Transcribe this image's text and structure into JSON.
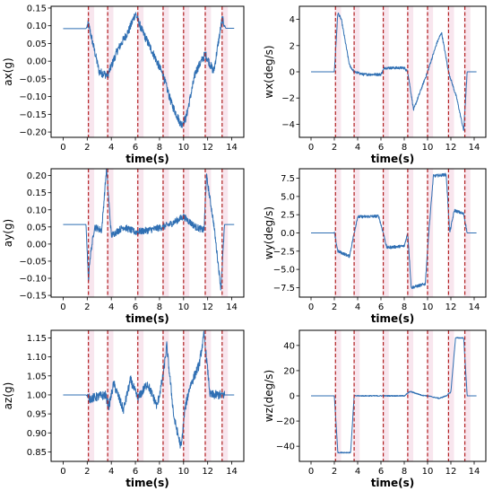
{
  "chart_data": [
    {
      "type": "line",
      "ylabel": "ax(g)",
      "xlabel": "time(s)",
      "xlim": [
        -1,
        15
      ],
      "ylim": [
        -0.215,
        0.155
      ],
      "xticks": [
        0,
        2,
        4,
        6,
        8,
        10,
        12,
        14
      ],
      "yticks": [
        -0.2,
        -0.15,
        -0.1,
        -0.05,
        0.0,
        0.05,
        0.1,
        0.15
      ],
      "ytick_labels": [
        "−0.20",
        "−0.15",
        "−0.10",
        "−0.05",
        "0.00",
        "0.05",
        "0.10",
        "0.15"
      ],
      "events": [
        2.1,
        3.7,
        6.2,
        8.3,
        10.0,
        11.8,
        13.2
      ],
      "noise": 0.012,
      "series": [
        {
          "x": [
            0,
            1.9,
            2.1,
            3.0,
            3.7,
            4.5,
            5.5,
            6.0,
            6.5,
            7.5,
            8.3,
            9.0,
            9.8,
            10.2,
            11.0,
            11.8,
            12.5,
            13.2,
            13.5,
            14.2
          ],
          "y": [
            0.092,
            0.092,
            0.105,
            -0.03,
            -0.04,
            0.03,
            0.09,
            0.135,
            0.09,
            0.02,
            -0.04,
            -0.12,
            -0.18,
            -0.16,
            -0.03,
            0.02,
            -0.03,
            0.12,
            0.093,
            0.093
          ]
        }
      ]
    },
    {
      "type": "line",
      "ylabel": "wx(deg/s)",
      "xlabel": "time(s)",
      "xlim": [
        -1,
        15
      ],
      "ylim": [
        -5.0,
        5.0
      ],
      "xticks": [
        0,
        2,
        4,
        6,
        8,
        10,
        12,
        14
      ],
      "yticks": [
        -4,
        -2,
        0,
        2,
        4
      ],
      "ytick_labels": [
        "−4",
        "−2",
        "0",
        "2",
        "4"
      ],
      "events": [
        2.1,
        3.7,
        6.2,
        8.3,
        10.0,
        11.8,
        13.2
      ],
      "noise": 0.1,
      "series": [
        {
          "x": [
            0,
            2.0,
            2.3,
            2.6,
            3.3,
            3.7,
            4.5,
            6.0,
            6.3,
            8.0,
            8.3,
            8.8,
            9.5,
            10.0,
            10.8,
            11.2,
            11.8,
            12.5,
            13.1,
            13.4,
            14.2
          ],
          "y": [
            0,
            0,
            4.5,
            4.0,
            0.5,
            0,
            -0.2,
            -0.2,
            0.3,
            0.3,
            0,
            -2.9,
            -1.2,
            0,
            2.2,
            3.0,
            0,
            -2.0,
            -4.5,
            0,
            0
          ]
        }
      ]
    },
    {
      "type": "line",
      "ylabel": "ay(g)",
      "xlabel": "time(s)",
      "xlim": [
        -1,
        15
      ],
      "ylim": [
        -0.155,
        0.22
      ],
      "xticks": [
        0,
        2,
        4,
        6,
        8,
        10,
        12,
        14
      ],
      "yticks": [
        -0.15,
        -0.1,
        -0.05,
        0.0,
        0.05,
        0.1,
        0.15,
        0.2
      ],
      "ytick_labels": [
        "−0.15",
        "−0.10",
        "−0.05",
        "0.00",
        "0.05",
        "0.10",
        "0.15",
        "0.20"
      ],
      "events": [
        2.1,
        3.7,
        6.2,
        8.3,
        10.0,
        11.8,
        13.2
      ],
      "noise": 0.01,
      "series": [
        {
          "x": [
            0,
            1.9,
            2.1,
            2.2,
            2.6,
            3.2,
            3.6,
            4.0,
            5.0,
            6.0,
            7.0,
            8.3,
            9.0,
            10.0,
            11.0,
            11.7,
            11.9,
            12.5,
            13.1,
            13.4,
            14.2
          ],
          "y": [
            0.057,
            0.057,
            -0.11,
            -0.05,
            0.05,
            0.04,
            0.22,
            0.025,
            0.05,
            0.035,
            0.04,
            0.05,
            0.06,
            0.08,
            0.05,
            0.04,
            0.2,
            0.06,
            -0.13,
            0.057,
            0.057
          ]
        }
      ]
    },
    {
      "type": "line",
      "ylabel": "wy(deg/s)",
      "xlabel": "time(s)",
      "xlim": [
        -1,
        15
      ],
      "ylim": [
        -8.8,
        8.8
      ],
      "xticks": [
        0,
        2,
        4,
        6,
        8,
        10,
        12,
        14
      ],
      "yticks": [
        -7.5,
        -5.0,
        -2.5,
        0.0,
        2.5,
        5.0,
        7.5
      ],
      "ytick_labels": [
        "−7.5",
        "−5.0",
        "−2.5",
        "0.0",
        "2.5",
        "5.0",
        "7.5"
      ],
      "events": [
        2.1,
        3.7,
        6.2,
        8.3,
        10.0,
        11.8,
        13.2
      ],
      "noise": 0.2,
      "series": [
        {
          "x": [
            0,
            2.0,
            2.3,
            3.3,
            3.7,
            4.0,
            5.8,
            6.2,
            6.5,
            8.0,
            8.3,
            8.6,
            9.8,
            10.1,
            10.5,
            11.6,
            11.9,
            12.3,
            13.1,
            13.4,
            14.2
          ],
          "y": [
            0,
            0,
            -2.5,
            -3.2,
            0,
            2.2,
            2.3,
            0,
            -2.0,
            -1.8,
            0,
            -7.5,
            -7.0,
            0,
            7.8,
            8.0,
            0,
            3.1,
            2.6,
            0,
            0
          ]
        }
      ]
    },
    {
      "type": "line",
      "ylabel": "az(g)",
      "xlabel": "time(s)",
      "xlim": [
        -1,
        15
      ],
      "ylim": [
        0.825,
        1.17
      ],
      "xticks": [
        0,
        2,
        4,
        6,
        8,
        10,
        12,
        14
      ],
      "yticks": [
        0.85,
        0.9,
        0.95,
        1.0,
        1.05,
        1.1,
        1.15
      ],
      "ytick_labels": [
        "0.85",
        "0.90",
        "0.95",
        "1.00",
        "1.05",
        "1.10",
        "1.15"
      ],
      "events": [
        2.1,
        3.7,
        6.2,
        8.3,
        10.0,
        11.8,
        13.2
      ],
      "noise": 0.012,
      "series": [
        {
          "x": [
            0,
            1.9,
            2.2,
            3.5,
            3.8,
            4.2,
            5.0,
            5.6,
            6.2,
            7.0,
            7.8,
            8.3,
            8.6,
            9.2,
            9.8,
            10.1,
            10.5,
            11.3,
            11.7,
            12.2,
            13.2,
            14.2
          ],
          "y": [
            1.0,
            1.0,
            0.99,
            1.0,
            0.97,
            1.03,
            0.96,
            1.04,
            0.99,
            1.03,
            0.97,
            1.05,
            1.13,
            0.94,
            0.86,
            0.96,
            1.02,
            1.08,
            1.16,
            1.0,
            1.0,
            1.0
          ]
        }
      ]
    },
    {
      "type": "line",
      "ylabel": "wz(deg/s)",
      "xlabel": "time(s)",
      "xlim": [
        -1,
        15
      ],
      "ylim": [
        -52,
        52
      ],
      "xticks": [
        0,
        2,
        4,
        6,
        8,
        10,
        12,
        14
      ],
      "yticks": [
        -40,
        -20,
        0,
        20,
        40
      ],
      "ytick_labels": [
        "−40",
        "−20",
        "0",
        "20",
        "40"
      ],
      "events": [
        2.1,
        3.7,
        6.2,
        8.3,
        10.0,
        11.8,
        13.2
      ],
      "noise": 0.4,
      "series": [
        {
          "x": [
            0,
            2.0,
            2.3,
            3.4,
            3.7,
            4.0,
            8.0,
            8.5,
            9.5,
            10.0,
            11.0,
            11.6,
            12.0,
            12.4,
            13.1,
            13.4,
            14.2
          ],
          "y": [
            0,
            0,
            -45,
            -45,
            0,
            0,
            0,
            3.5,
            0.5,
            0,
            -2.0,
            0,
            3.0,
            46,
            46,
            0,
            0
          ]
        }
      ]
    }
  ]
}
